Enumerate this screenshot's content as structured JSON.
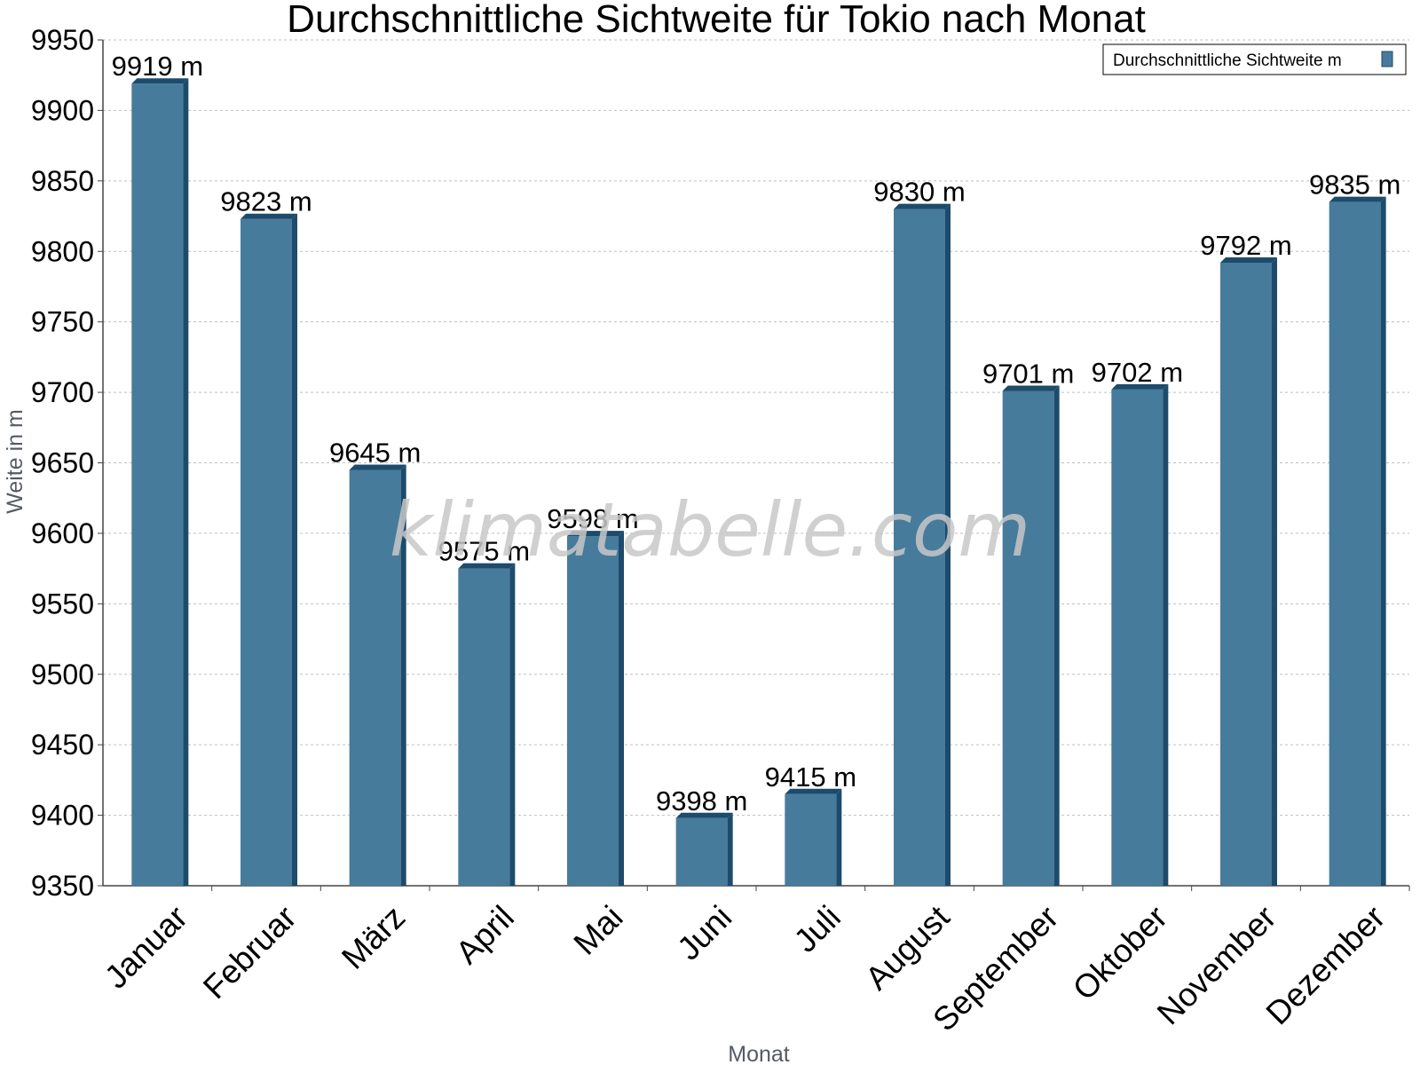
{
  "chart_data": {
    "type": "bar",
    "title": "Durchschnittliche Sichtweite für Tokio nach Monat",
    "xlabel": "Monat",
    "ylabel": "Weite in m",
    "ylim": [
      9350,
      9950
    ],
    "yticks": [
      9350,
      9400,
      9450,
      9500,
      9550,
      9600,
      9650,
      9700,
      9750,
      9800,
      9850,
      9900,
      9950
    ],
    "categories": [
      "Januar",
      "Februar",
      "März",
      "April",
      "Mai",
      "Juni",
      "Juli",
      "August",
      "September",
      "Oktober",
      "November",
      "Dezember"
    ],
    "series": [
      {
        "name": "Durchschnittliche Sichtweite m",
        "values": [
          9919,
          9823,
          9645,
          9575,
          9598,
          9398,
          9415,
          9830,
          9701,
          9702,
          9792,
          9835
        ],
        "data_labels": [
          "9919 m",
          "9823 m",
          "9645 m",
          "9575 m",
          "9598 m",
          "9398 m",
          "9415 m",
          "9830 m",
          "9701 m",
          "9702 m",
          "9792 m",
          "9835 m"
        ]
      }
    ],
    "grid": true,
    "legend_position": "top-right",
    "colors": {
      "bar_front": "#467b9c",
      "bar_side": "#1d4b6b",
      "grid": "#bfbfbf",
      "axis": "#444444"
    }
  },
  "watermark": "klimatabelle.com"
}
